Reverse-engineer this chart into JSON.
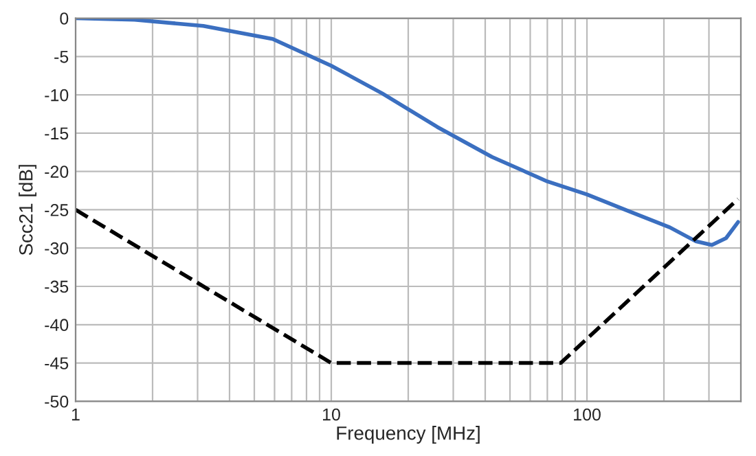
{
  "chart_data": {
    "type": "line",
    "xlabel": "Frequency [MHz]",
    "ylabel": "Scc21 [dB]",
    "log": "x",
    "grid": true,
    "xlim": [
      1,
      400
    ],
    "ylim": [
      -50,
      0
    ],
    "xticks": [
      1,
      {
        "value": 2,
        "label": null
      },
      {
        "value": 3,
        "label": null
      },
      {
        "value": 4,
        "label": null
      },
      {
        "value": 5,
        "label": null
      },
      {
        "value": 6,
        "label": null
      },
      {
        "value": 7,
        "label": null
      },
      {
        "value": 8,
        "label": null
      },
      {
        "value": 9,
        "label": null
      },
      10,
      {
        "value": 20,
        "label": null
      },
      {
        "value": 30,
        "label": null
      },
      {
        "value": 40,
        "label": null
      },
      {
        "value": 50,
        "label": null
      },
      {
        "value": 60,
        "label": null
      },
      {
        "value": 70,
        "label": null
      },
      {
        "value": 80,
        "label": null
      },
      {
        "value": 90,
        "label": null
      },
      100,
      {
        "value": 200,
        "label": null
      },
      {
        "value": 300,
        "label": null
      },
      {
        "value": 400,
        "label": null
      }
    ],
    "yticks": [
      0,
      -5,
      -10,
      -15,
      -20,
      -25,
      -30,
      -35,
      -40,
      -45,
      -50
    ],
    "series": [
      {
        "color": "#3b6fc0",
        "line_style": "solid",
        "x": [
          1,
          1.7,
          3.16,
          5.9,
          10,
          15.8,
          26,
          42.5,
          70,
          100,
          146,
          211,
          266,
          308,
          350,
          390
        ],
        "values": [
          0,
          -0.2,
          -1,
          -2.7,
          -6.2,
          -9.8,
          -14.2,
          -18.1,
          -21.3,
          -23,
          -25.2,
          -27.3,
          -29.1,
          -29.6,
          -28.7,
          -26.6
        ]
      },
      {
        "color": "#000000",
        "line_style": "dashed",
        "x": [
          1,
          10,
          79,
          390
        ],
        "values": [
          -25,
          -45,
          -45,
          -23.6
        ]
      }
    ]
  }
}
